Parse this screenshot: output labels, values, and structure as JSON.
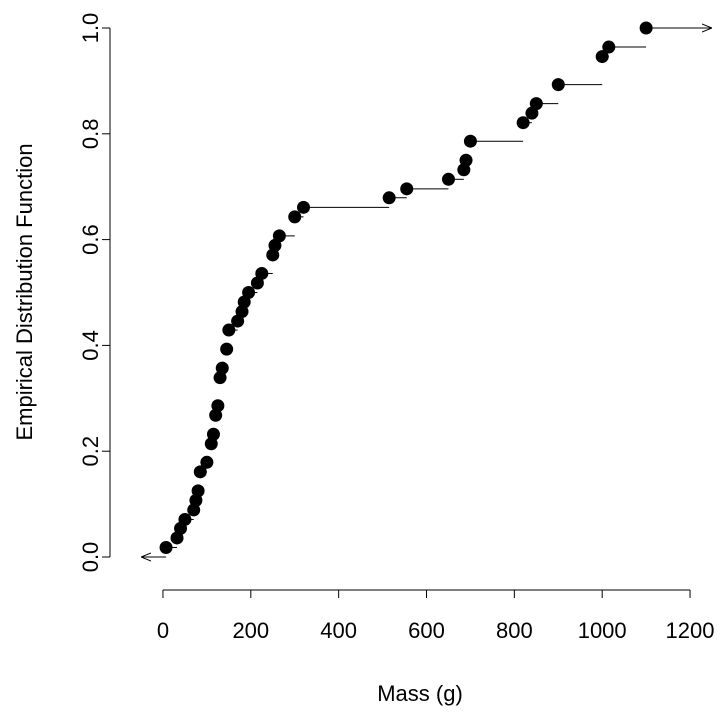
{
  "chart_data": {
    "type": "ecdf",
    "xlabel": "Mass (g)",
    "ylabel": "Empirical Distribution Function",
    "x": [
      7,
      32,
      40,
      50,
      70,
      75,
      80,
      85,
      100,
      110,
      115,
      120,
      125,
      130,
      135,
      145,
      150,
      170,
      180,
      185,
      195,
      215,
      225,
      250,
      255,
      265,
      300,
      320,
      515,
      555,
      650,
      685,
      690,
      700,
      820,
      840,
      850,
      900,
      1000,
      1015,
      1100
    ],
    "values": [
      0.018,
      0.036,
      0.054,
      0.071,
      0.089,
      0.107,
      0.125,
      0.161,
      0.179,
      0.214,
      0.232,
      0.268,
      0.286,
      0.339,
      0.357,
      0.393,
      0.429,
      0.446,
      0.464,
      0.482,
      0.5,
      0.518,
      0.536,
      0.571,
      0.589,
      0.607,
      0.643,
      0.661,
      0.679,
      0.696,
      0.714,
      0.732,
      0.75,
      0.786,
      0.821,
      0.839,
      0.857,
      0.893,
      0.946,
      0.964,
      1.0
    ],
    "color": "#000000",
    "xlim": [
      -50,
      1250
    ],
    "ylim": [
      0,
      1
    ],
    "xticks": [
      0,
      200,
      400,
      600,
      800,
      1000,
      1200
    ],
    "yticks": [
      {
        "value": 0,
        "label": "0.0"
      },
      {
        "value": 0.2,
        "label": "0.2"
      },
      {
        "value": 0.4,
        "label": "0.4"
      },
      {
        "value": 0.6,
        "label": "0.6"
      },
      {
        "value": 0.8,
        "label": "0.8"
      },
      {
        "value": 1,
        "label": "1.0"
      }
    ]
  }
}
